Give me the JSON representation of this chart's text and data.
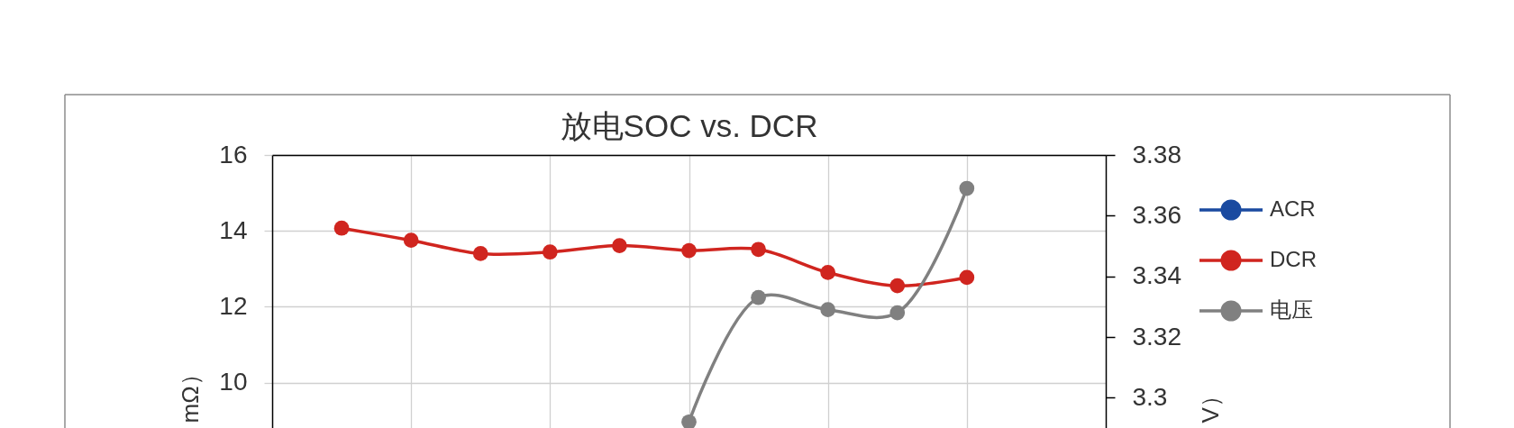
{
  "chart_data": {
    "type": "line",
    "title": "放电SOC vs. DCR",
    "ylabel": "mΩ）",
    "y2label": "V）",
    "categories": [
      null,
      null,
      null,
      null,
      null,
      null,
      null,
      null,
      null,
      null
    ],
    "series": [
      {
        "name": "ACR",
        "color": "#1a4aa0",
        "values": [
          null,
          null,
          null,
          null,
          null,
          null,
          null,
          null,
          null,
          null
        ]
      },
      {
        "name": "DCR",
        "color": "#d0251f",
        "values": [
          14.07,
          13.75,
          13.4,
          13.44,
          13.61,
          13.48,
          13.51,
          12.9,
          12.55,
          12.77
        ]
      },
      {
        "name": "电压",
        "color": "#808080",
        "axis": "y2",
        "values": [
          null,
          null,
          null,
          null,
          null,
          3.292,
          3.333,
          3.329,
          3.328,
          3.369
        ]
      }
    ],
    "ylim": [
      8.8,
      16
    ],
    "yticks": [
      10,
      12,
      14,
      16
    ],
    "y2lim": [
      3.29,
      3.38
    ],
    "y2ticks": [
      3.3,
      3.32,
      3.34,
      3.36,
      3.38
    ],
    "grid": true,
    "legend": "right",
    "tick_labels": "y",
    "marker": "circle",
    "line_style": "solid"
  }
}
